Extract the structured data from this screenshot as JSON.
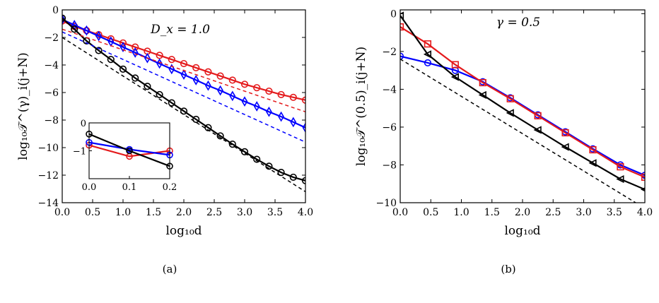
{
  "chart_data": [
    {
      "id": "a",
      "type": "line",
      "caption": "(a)",
      "annotation": "D_x = 1.0",
      "xlabel": "log₁₀d",
      "ylabel": "log₁₀𝒯^(γ)_i(j+N)",
      "xlim": [
        0,
        4
      ],
      "ylim": [
        -14,
        0
      ],
      "xticks": [
        0.0,
        0.5,
        1.0,
        1.5,
        2.0,
        2.5,
        3.0,
        3.5,
        4.0
      ],
      "yticks": [
        0,
        -2,
        -4,
        -6,
        -8,
        -10,
        -12,
        -14
      ],
      "xtick_labels": [
        "0.0",
        "0.5",
        "1.0",
        "1.5",
        "2.0",
        "2.5",
        "3.0",
        "3.5",
        "4.0"
      ],
      "ytick_labels": [
        "0",
        "−2",
        "−4",
        "−6",
        "−8",
        "−10",
        "−12",
        "−14"
      ],
      "grid": false,
      "series": [
        {
          "color": "#e41a1c",
          "marker": "circle",
          "style": "solid",
          "x": [
            0.0,
            0.2,
            0.4,
            0.6,
            0.8,
            1.0,
            1.2,
            1.4,
            1.6,
            1.8,
            2.0,
            2.2,
            2.4,
            2.6,
            2.8,
            3.0,
            3.2,
            3.4,
            3.6,
            3.8,
            4.0
          ],
          "y": [
            -0.8,
            -1.2,
            -1.5,
            -1.8,
            -2.1,
            -2.4,
            -2.7,
            -3.0,
            -3.3,
            -3.6,
            -3.9,
            -4.2,
            -4.5,
            -4.8,
            -5.1,
            -5.4,
            -5.65,
            -5.9,
            -6.15,
            -6.35,
            -6.55
          ]
        },
        {
          "color": "#0000ff",
          "marker": "diamond",
          "style": "solid",
          "x": [
            0.0,
            0.2,
            0.4,
            0.6,
            0.8,
            1.0,
            1.2,
            1.4,
            1.6,
            1.8,
            2.0,
            2.2,
            2.4,
            2.6,
            2.8,
            3.0,
            3.2,
            3.4,
            3.6,
            3.8,
            4.0
          ],
          "y": [
            -0.7,
            -1.1,
            -1.5,
            -1.9,
            -2.3,
            -2.7,
            -3.1,
            -3.5,
            -3.9,
            -4.3,
            -4.7,
            -5.1,
            -5.5,
            -5.85,
            -6.25,
            -6.65,
            -7.0,
            -7.4,
            -7.75,
            -8.15,
            -8.55
          ]
        },
        {
          "color": "#000000",
          "marker": "circle",
          "style": "solid",
          "x": [
            0.0,
            0.2,
            0.4,
            0.6,
            0.8,
            1.0,
            1.2,
            1.4,
            1.6,
            1.8,
            2.0,
            2.2,
            2.4,
            2.6,
            2.8,
            3.0,
            3.2,
            3.4,
            3.6,
            3.8,
            4.0
          ],
          "y": [
            -0.6,
            -1.4,
            -2.25,
            -2.95,
            -3.6,
            -4.3,
            -4.95,
            -5.55,
            -6.15,
            -6.75,
            -7.35,
            -7.95,
            -8.55,
            -9.15,
            -9.75,
            -10.3,
            -10.85,
            -11.35,
            -11.8,
            -12.15,
            -12.4
          ]
        },
        {
          "color": "#e41a1c",
          "marker": "none",
          "style": "dashed",
          "x": [
            0.0,
            4.0
          ],
          "y": [
            -1.4,
            -7.4
          ]
        },
        {
          "color": "#0000ff",
          "marker": "none",
          "style": "dashed",
          "x": [
            0.0,
            4.0
          ],
          "y": [
            -1.6,
            -9.6
          ]
        },
        {
          "color": "#000000",
          "marker": "none",
          "style": "dashed",
          "x": [
            0.0,
            4.0
          ],
          "y": [
            -2.0,
            -13.2
          ]
        }
      ],
      "inset": {
        "xlim": [
          0,
          0.2
        ],
        "ylim": [
          -2,
          0
        ],
        "xticks": [
          0.0,
          0.1,
          0.2
        ],
        "yticks": [
          0,
          -1
        ],
        "xtick_labels": [
          "0.0",
          "0.1",
          "0.2"
        ],
        "ytick_labels": [
          "0",
          "−1"
        ],
        "series": [
          {
            "color": "#e41a1c",
            "marker": "circle",
            "style": "solid",
            "x": [
              0.0,
              0.1,
              0.2
            ],
            "y": [
              -0.8,
              -1.2,
              -1.0
            ]
          },
          {
            "color": "#0000ff",
            "marker": "circle",
            "style": "solid",
            "x": [
              0.0,
              0.1,
              0.2
            ],
            "y": [
              -0.7,
              -0.95,
              -1.15
            ]
          },
          {
            "color": "#000000",
            "marker": "circle",
            "style": "solid",
            "x": [
              0.0,
              0.1,
              0.2
            ],
            "y": [
              -0.4,
              -1.0,
              -1.55
            ]
          }
        ]
      }
    },
    {
      "id": "b",
      "type": "line",
      "caption": "(b)",
      "annotation": "γ = 0.5",
      "xlabel": "log₁₀d",
      "ylabel": "log₁₀𝒯^(0.5)_i(j+N)",
      "xlim": [
        0,
        4
      ],
      "ylim": [
        -10,
        0.2
      ],
      "xticks": [
        0.0,
        0.5,
        1.0,
        1.5,
        2.0,
        2.5,
        3.0,
        3.5,
        4.0
      ],
      "yticks": [
        0,
        -2,
        -4,
        -6,
        -8,
        -10
      ],
      "xtick_labels": [
        "0.0",
        "0.5",
        "1.0",
        "1.5",
        "2.0",
        "2.5",
        "3.0",
        "3.5",
        "4.0"
      ],
      "ytick_labels": [
        "0",
        "−2",
        "−4",
        "−6",
        "−8",
        "−10"
      ],
      "grid": false,
      "series": [
        {
          "color": "#0000ff",
          "marker": "circle",
          "style": "solid",
          "x": [
            0.0,
            0.45,
            0.9,
            1.35,
            1.8,
            2.25,
            2.7,
            3.15,
            3.6,
            4.0
          ],
          "y": [
            -2.25,
            -2.6,
            -3.0,
            -3.6,
            -4.45,
            -5.35,
            -6.25,
            -7.15,
            -8.0,
            -8.55
          ]
        },
        {
          "color": "#e41a1c",
          "marker": "square",
          "style": "solid",
          "x": [
            0.0,
            0.45,
            0.9,
            1.35,
            1.8,
            2.25,
            2.7,
            3.15,
            3.6,
            4.0
          ],
          "y": [
            -0.7,
            -1.6,
            -2.7,
            -3.65,
            -4.5,
            -5.4,
            -6.3,
            -7.2,
            -8.1,
            -8.65
          ]
        },
        {
          "color": "#000000",
          "marker": "triangle-left",
          "style": "solid",
          "x": [
            0.0,
            0.45,
            0.9,
            1.35,
            1.8,
            2.25,
            2.7,
            3.15,
            3.6,
            4.0
          ],
          "y": [
            -0.1,
            -2.15,
            -3.35,
            -4.3,
            -5.25,
            -6.15,
            -7.05,
            -7.9,
            -8.75,
            -9.3
          ]
        },
        {
          "color": "#000000",
          "marker": "none",
          "style": "dashed",
          "x": [
            0.0,
            3.85
          ],
          "y": [
            -2.4,
            -10.0
          ]
        }
      ]
    }
  ]
}
